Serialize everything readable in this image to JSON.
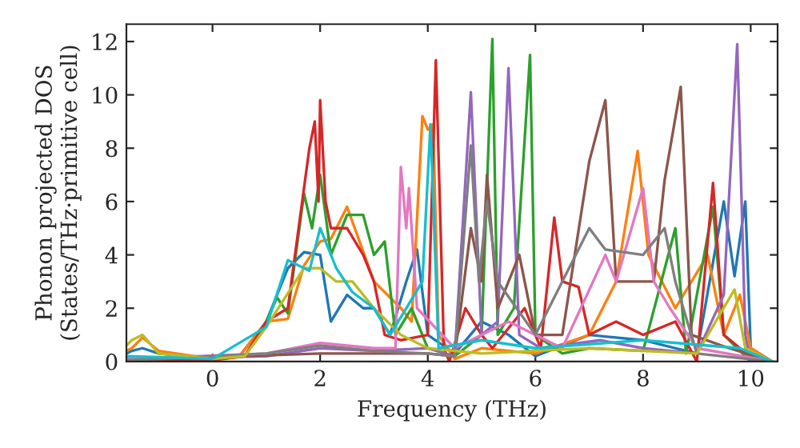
{
  "chart_data": {
    "type": "line",
    "xlabel": "Frequency (THz)",
    "ylabel": "Phonon projected DOS\n(States/THz·primitive cell)",
    "xlim": [
      -1.6,
      10.5
    ],
    "ylim": [
      0,
      12.65
    ],
    "xticks": [
      0,
      2,
      4,
      6,
      8,
      10
    ],
    "yticks": [
      0,
      2,
      4,
      6,
      8,
      10,
      12
    ],
    "grid": false,
    "legend": false,
    "marker": "none",
    "line_style": "solid",
    "series": [
      {
        "color": "#1f77b4",
        "x": [
          -1.6,
          -1.5,
          -1.3,
          -1.0,
          0,
          0.5,
          1.0,
          1.4,
          1.7,
          2.0,
          2.2,
          2.5,
          2.8,
          3.0,
          3.3,
          3.6,
          3.8,
          4.0,
          4.5,
          5.0,
          5.5,
          6.0,
          7.0,
          8.0,
          9.0,
          9.5,
          9.7,
          9.9,
          10.0,
          10.4
        ],
        "values": [
          0.3,
          0.4,
          0.5,
          0.3,
          0.1,
          0.2,
          1.5,
          3.5,
          4.1,
          4.0,
          1.5,
          2.5,
          2.0,
          2.0,
          1.0,
          3.0,
          4.2,
          1.0,
          0.3,
          1.5,
          1.0,
          0.2,
          1.0,
          0.8,
          0.3,
          6.0,
          3.2,
          6.0,
          0.5,
          0
        ]
      },
      {
        "color": "#ff7f0e",
        "x": [
          -1.6,
          -1.5,
          -1.3,
          -1.0,
          0,
          0.5,
          1.0,
          1.4,
          1.7,
          2.0,
          2.2,
          2.5,
          3.0,
          3.5,
          3.7,
          3.9,
          4.0,
          4.1,
          4.2,
          4.5,
          5.0,
          6.0,
          7.0,
          7.5,
          7.9,
          8.1,
          8.6,
          9.2,
          9.5,
          9.8,
          10.0,
          10.4
        ],
        "values": [
          0.4,
          0.5,
          0.9,
          0.4,
          0.1,
          0.2,
          1.5,
          1.6,
          3.6,
          4.5,
          4.6,
          5.8,
          3.0,
          2.0,
          1.5,
          9.2,
          8.7,
          8.9,
          1.0,
          0.1,
          0.5,
          0.3,
          1.0,
          3.0,
          7.9,
          4.0,
          2.0,
          4.0,
          1.0,
          2.5,
          0.5,
          0
        ]
      },
      {
        "color": "#2ca02c",
        "x": [
          -1.6,
          0,
          0.6,
          1.0,
          1.2,
          1.4,
          1.7,
          1.85,
          2.0,
          2.2,
          2.5,
          2.8,
          3.0,
          3.2,
          3.4,
          3.7,
          4.0,
          4.5,
          5.0,
          5.2,
          5.3,
          5.6,
          5.9,
          6.0,
          6.5,
          7.0,
          8.0,
          8.6,
          8.8,
          9.3,
          9.5,
          10.0,
          10.4
        ],
        "values": [
          0.1,
          0.1,
          0.2,
          1.5,
          2.4,
          1.8,
          6.3,
          5.0,
          7.0,
          4.0,
          5.5,
          5.5,
          4.0,
          4.5,
          1.0,
          2.0,
          0.5,
          0.2,
          1.0,
          12.1,
          1.0,
          2.0,
          11.5,
          1.0,
          0.3,
          0.5,
          0.4,
          5.0,
          0.3,
          5.8,
          1.0,
          0,
          0
        ]
      },
      {
        "color": "#d62728",
        "x": [
          -1.6,
          0,
          0.6,
          1.0,
          1.4,
          1.6,
          1.8,
          1.9,
          1.97,
          2.0,
          2.1,
          2.2,
          2.5,
          2.8,
          3.0,
          3.2,
          3.5,
          4.0,
          4.15,
          4.3,
          4.4,
          4.7,
          5.0,
          5.2,
          5.8,
          6.1,
          6.35,
          6.5,
          6.8,
          7.0,
          7.5,
          8.0,
          8.6,
          9.0,
          9.3,
          9.5,
          9.8,
          10.1,
          10.4
        ],
        "values": [
          0.1,
          0.05,
          0.2,
          1.5,
          2.0,
          5.0,
          8.0,
          9.0,
          6.0,
          9.8,
          6.0,
          5.0,
          5.0,
          4.0,
          3.0,
          1.0,
          0.8,
          1.0,
          11.3,
          0.5,
          0,
          2.0,
          1.0,
          0.5,
          2.0,
          0.5,
          5.4,
          3.0,
          2.8,
          1.0,
          1.5,
          1.0,
          1.5,
          0,
          6.7,
          1.0,
          0.5,
          0,
          0
        ]
      },
      {
        "color": "#9467bd",
        "x": [
          -1.6,
          1.0,
          2.0,
          3.0,
          4.0,
          4.5,
          4.8,
          5.0,
          5.3,
          5.5,
          5.7,
          6.1,
          7.2,
          8.0,
          9.0,
          9.5,
          9.75,
          9.9,
          10.0,
          10.4
        ],
        "values": [
          0.1,
          0.2,
          0.5,
          0.4,
          0.5,
          0.2,
          10.1,
          1.0,
          1.5,
          11.0,
          1.0,
          0.5,
          0.8,
          0.5,
          0.3,
          2.5,
          11.9,
          1.0,
          0,
          0
        ]
      },
      {
        "color": "#8c564b",
        "x": [
          -1.6,
          2.0,
          4.0,
          4.5,
          4.8,
          5.0,
          5.1,
          5.3,
          5.7,
          6.0,
          6.5,
          7.0,
          7.3,
          7.5,
          8.2,
          8.4,
          8.7,
          8.9,
          9.6,
          10.4
        ],
        "values": [
          0.05,
          0.3,
          0.3,
          0.2,
          5.0,
          3.0,
          7.0,
          2.0,
          4.0,
          1.0,
          1.0,
          7.5,
          9.8,
          3.0,
          3.0,
          6.8,
          10.3,
          1.0,
          0.5,
          0
        ]
      },
      {
        "color": "#e377c2",
        "x": [
          -1.6,
          1.0,
          2.0,
          3.0,
          3.4,
          3.5,
          3.6,
          3.65,
          3.8,
          4.5,
          5.5,
          6.5,
          7.3,
          7.5,
          8.0,
          8.2,
          8.5,
          9.0,
          10.4
        ],
        "values": [
          0.1,
          0.3,
          0.7,
          0.5,
          0.5,
          7.3,
          5.0,
          6.5,
          2.0,
          0.5,
          1.5,
          0.5,
          4.0,
          3.0,
          6.5,
          3.0,
          2.0,
          0.5,
          0
        ]
      },
      {
        "color": "#7f7f7f",
        "x": [
          -1.6,
          1.0,
          2.0,
          3.0,
          4.0,
          4.5,
          4.8,
          4.95,
          5.1,
          5.3,
          6.0,
          7.0,
          7.3,
          8.0,
          8.4,
          8.6,
          9.0,
          10.4
        ],
        "values": [
          0.05,
          0.3,
          0.6,
          0.4,
          0.3,
          0.2,
          8.1,
          3.0,
          6.0,
          3.0,
          1.0,
          5.0,
          4.2,
          4.0,
          5.0,
          3.0,
          0.3,
          0
        ]
      },
      {
        "color": "#bcbd22",
        "x": [
          -1.6,
          -1.5,
          -1.3,
          -1.0,
          0,
          0.6,
          1.0,
          1.7,
          2.0,
          2.3,
          2.6,
          3.0,
          3.5,
          4.0,
          5.0,
          7.0,
          9.0,
          9.7,
          9.9,
          10.4
        ],
        "values": [
          0.6,
          0.8,
          1.0,
          0.3,
          0.1,
          0.2,
          1.3,
          3.5,
          3.5,
          3.0,
          3.0,
          2.0,
          1.0,
          0.5,
          0.3,
          0.5,
          0.3,
          2.7,
          0.5,
          0
        ]
      },
      {
        "color": "#17becf",
        "x": [
          -1.6,
          0,
          1.0,
          1.4,
          1.8,
          2.0,
          2.3,
          2.6,
          3.0,
          3.3,
          3.9,
          4.05,
          4.2,
          5.0,
          6.0,
          8.0,
          9.8,
          10.4
        ],
        "values": [
          0.2,
          0.1,
          1.3,
          3.8,
          3.4,
          5.0,
          3.5,
          2.6,
          2.0,
          1.0,
          3.0,
          8.9,
          0.5,
          0.8,
          0.5,
          0.8,
          0.5,
          0
        ]
      }
    ]
  }
}
